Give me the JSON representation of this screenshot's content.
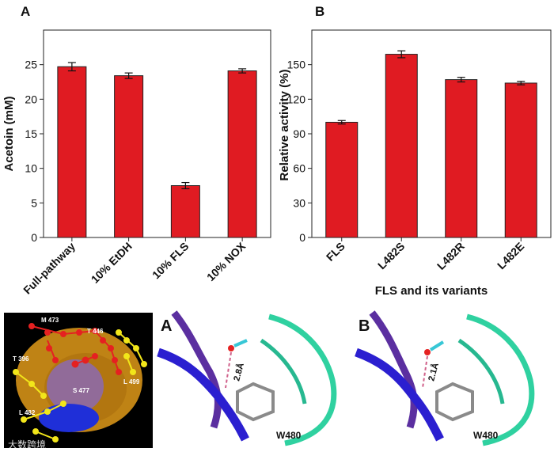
{
  "chart_data": [
    {
      "type": "bar",
      "panel": "A",
      "title": "",
      "xlabel": "",
      "ylabel": "Acetoin (mM)",
      "ylim": [
        0,
        30
      ],
      "yticks": [
        0,
        5,
        10,
        15,
        20,
        25
      ],
      "categories": [
        "Full-pathway",
        "10% EtDH",
        "10% FLS",
        "10% NOX"
      ],
      "values": [
        24.7,
        23.4,
        7.5,
        24.1
      ],
      "errors": [
        0.6,
        0.4,
        0.45,
        0.3
      ],
      "color": "#e01b22"
    },
    {
      "type": "bar",
      "panel": "B",
      "title": "",
      "xlabel": "FLS and its variants",
      "ylabel": "Relative activity (%)",
      "ylim": [
        0,
        180
      ],
      "yticks": [
        0,
        30,
        60,
        90,
        120,
        150
      ],
      "categories": [
        "FLS",
        "L482S",
        "L482R",
        "L482E"
      ],
      "values": [
        100,
        159,
        137,
        134
      ],
      "errors": [
        1.5,
        3,
        2,
        1.5
      ],
      "color": "#e01b22"
    }
  ],
  "structures": {
    "surface_labels": [
      "M 473",
      "T 446",
      "T 396",
      "S 477",
      "L 499",
      "L 482"
    ],
    "panels": [
      {
        "label": "A",
        "distance": "2.8Å",
        "residue": "W480"
      },
      {
        "label": "B",
        "distance": "2.1Å",
        "residue": "W480"
      }
    ]
  },
  "watermark": "大数跨境"
}
